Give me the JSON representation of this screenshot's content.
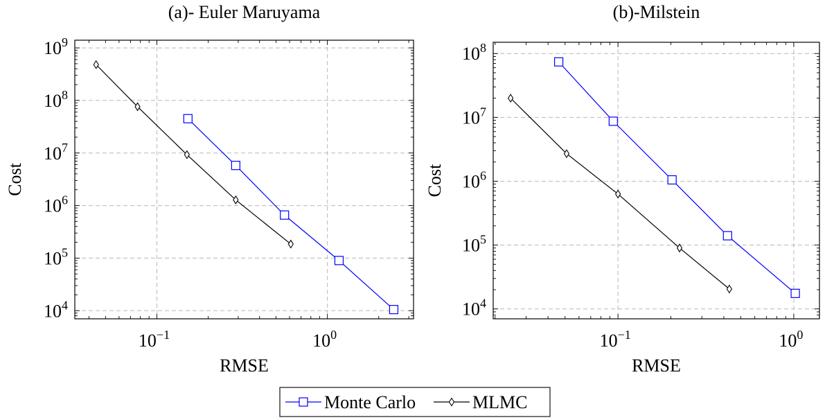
{
  "chart_data": [
    {
      "type": "line",
      "title": "(a)- Euler Maruyama",
      "xlabel": "RMSE",
      "ylabel": "Cost",
      "xscale": "log",
      "yscale": "log",
      "xlim": [
        0.033,
        3.2
      ],
      "ylim": [
        7000,
        1400000000
      ],
      "xticks": [
        {
          "value": 0.1,
          "base": "10",
          "exp": "−1"
        },
        {
          "value": 1,
          "base": "10",
          "exp": "0"
        }
      ],
      "yticks": [
        {
          "value": 10000,
          "base": "10",
          "exp": "4"
        },
        {
          "value": 100000,
          "base": "10",
          "exp": "5"
        },
        {
          "value": 1000000,
          "base": "10",
          "exp": "6"
        },
        {
          "value": 10000000,
          "base": "10",
          "exp": "7"
        },
        {
          "value": 100000000,
          "base": "10",
          "exp": "8"
        },
        {
          "value": 1000000000,
          "base": "10",
          "exp": "9"
        }
      ],
      "grid": true,
      "series": [
        {
          "name": "Monte Carlo",
          "color": "#0000ff",
          "marker": "square",
          "x": [
            0.152,
            0.29,
            0.56,
            1.17,
            2.45
          ],
          "y": [
            45000000,
            5800000,
            660000,
            90000,
            10500
          ]
        },
        {
          "name": "MLMC",
          "color": "#000000",
          "marker": "diamond",
          "x": [
            0.044,
            0.077,
            0.15,
            0.29,
            0.61
          ],
          "y": [
            480000000,
            76000000,
            9300000,
            1280000,
            185000
          ]
        }
      ]
    },
    {
      "type": "line",
      "title": "(b)-Milstein",
      "xlabel": "RMSE",
      "ylabel": "Cost",
      "xscale": "log",
      "yscale": "log",
      "xlim": [
        0.0195,
        1.4
      ],
      "ylim": [
        7000,
        150000000
      ],
      "xticks": [
        {
          "value": 0.1,
          "base": "10",
          "exp": "−1"
        },
        {
          "value": 1,
          "base": "10",
          "exp": "0"
        }
      ],
      "yticks": [
        {
          "value": 10000,
          "base": "10",
          "exp": "4"
        },
        {
          "value": 100000,
          "base": "10",
          "exp": "5"
        },
        {
          "value": 1000000,
          "base": "10",
          "exp": "6"
        },
        {
          "value": 10000000,
          "base": "10",
          "exp": "7"
        },
        {
          "value": 100000000,
          "base": "10",
          "exp": "8"
        }
      ],
      "grid": true,
      "series": [
        {
          "name": "Monte Carlo",
          "color": "#0000ff",
          "marker": "square",
          "x": [
            0.046,
            0.094,
            0.203,
            0.42,
            1.02
          ],
          "y": [
            74000000,
            8700000,
            1050000,
            140000,
            17500
          ]
        },
        {
          "name": "MLMC",
          "color": "#000000",
          "marker": "diamond",
          "x": [
            0.0245,
            0.051,
            0.1,
            0.224,
            0.43
          ],
          "y": [
            20000000,
            2700000,
            630000,
            90000,
            20500
          ]
        }
      ]
    }
  ],
  "legend": {
    "placement": "bottom-center",
    "entries": [
      {
        "label": "Monte Carlo",
        "color": "#0000ff",
        "marker": "square"
      },
      {
        "label": "MLMC",
        "color": "#000000",
        "marker": "diamond"
      }
    ]
  }
}
